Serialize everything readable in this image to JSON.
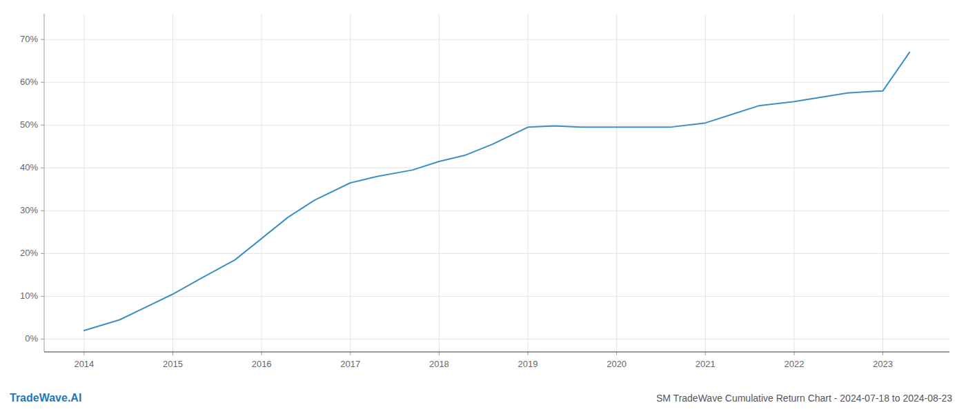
{
  "chart_data": {
    "type": "line",
    "title": "SM TradeWave Cumulative Return Chart - 2024-07-18 to 2024-08-23",
    "annotations": [
      "TradeWave.AI"
    ],
    "x": [
      2014.0,
      2014.4,
      2014.7,
      2015.0,
      2015.3,
      2015.7,
      2016.0,
      2016.3,
      2016.6,
      2017.0,
      2017.3,
      2017.7,
      2018.0,
      2018.3,
      2018.6,
      2019.0,
      2019.3,
      2019.6,
      2020.0,
      2020.3,
      2020.6,
      2021.0,
      2021.3,
      2021.6,
      2022.0,
      2022.3,
      2022.6,
      2023.0,
      2023.3
    ],
    "values": [
      2.0,
      4.5,
      7.5,
      10.5,
      14.0,
      18.5,
      23.5,
      28.5,
      32.5,
      36.5,
      38.0,
      39.5,
      41.5,
      43.0,
      45.5,
      49.5,
      49.8,
      49.5,
      49.5,
      49.5,
      49.5,
      50.5,
      52.5,
      54.5,
      55.5,
      56.5,
      57.5,
      58.0,
      67.0
    ],
    "color": "#3a8fc7",
    "xlim": [
      2013.55,
      2023.75
    ],
    "ylim": [
      -3,
      76
    ],
    "xticks": [
      2014,
      2015,
      2016,
      2017,
      2018,
      2019,
      2020,
      2021,
      2022,
      2023
    ],
    "yticks": [
      {
        "value": 0,
        "label": "0%"
      },
      {
        "value": 10,
        "label": "10%"
      },
      {
        "value": 20,
        "label": "20%"
      },
      {
        "value": 30,
        "label": "30%"
      },
      {
        "value": 40,
        "label": "40%"
      },
      {
        "value": 50,
        "label": "50%"
      },
      {
        "value": 60,
        "label": "60%"
      },
      {
        "value": 70,
        "label": "70%"
      }
    ],
    "grid": true
  }
}
